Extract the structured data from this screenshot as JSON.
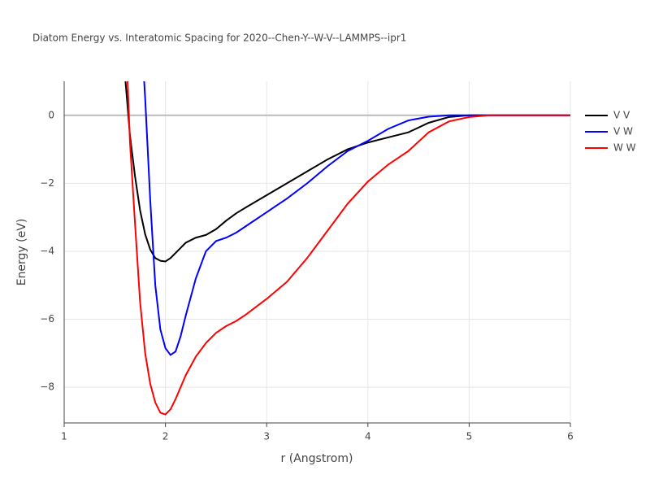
{
  "chart_data": {
    "type": "line",
    "title": "Diatom Energy vs. Interatomic Spacing for 2020--Chen-Y--W-V--LAMMPS--ipr1",
    "x_label": "r (Angstrom)",
    "y_label": "Energy (eV)",
    "x": [
      1.6,
      1.65,
      1.7,
      1.75,
      1.8,
      1.85,
      1.9,
      1.95,
      2.0,
      2.05,
      2.1,
      2.15,
      2.2,
      2.3,
      2.4,
      2.5,
      2.6,
      2.7,
      2.8,
      3.0,
      3.2,
      3.4,
      3.6,
      3.8,
      4.0,
      4.2,
      4.4,
      4.6,
      4.8,
      5.0,
      5.2,
      5.5,
      6.0
    ],
    "series": [
      {
        "name": "V V",
        "color": "#000000",
        "values": [
          1.2,
          -0.6,
          -1.8,
          -2.8,
          -3.5,
          -3.95,
          -4.2,
          -4.28,
          -4.3,
          -4.2,
          -4.05,
          -3.9,
          -3.75,
          -3.6,
          -3.52,
          -3.35,
          -3.1,
          -2.88,
          -2.7,
          -2.35,
          -2.0,
          -1.65,
          -1.3,
          -1.0,
          -0.8,
          -0.65,
          -0.5,
          -0.22,
          -0.05,
          0,
          0,
          0,
          0
        ]
      },
      {
        "name": "V W",
        "color": "#0000ff",
        "values": [
          null,
          null,
          null,
          3.0,
          0.5,
          -2.5,
          -5.0,
          -6.3,
          -6.85,
          -7.05,
          -6.95,
          -6.5,
          -5.9,
          -4.8,
          -4.0,
          -3.7,
          -3.6,
          -3.45,
          -3.25,
          -2.85,
          -2.45,
          -2.0,
          -1.5,
          -1.05,
          -0.75,
          -0.4,
          -0.15,
          -0.04,
          0,
          0,
          0,
          0,
          0
        ]
      },
      {
        "name": "W W",
        "color": "#ff0000",
        "values": [
          3.0,
          -0.8,
          -3.2,
          -5.5,
          -7.0,
          -7.9,
          -8.45,
          -8.75,
          -8.8,
          -8.65,
          -8.35,
          -8.0,
          -7.65,
          -7.1,
          -6.7,
          -6.4,
          -6.2,
          -6.05,
          -5.85,
          -5.4,
          -4.9,
          -4.2,
          -3.4,
          -2.6,
          -1.95,
          -1.45,
          -1.05,
          -0.5,
          -0.18,
          -0.05,
          0,
          0,
          0
        ]
      }
    ],
    "xlim": [
      1,
      6
    ],
    "xticks": [
      1,
      2,
      3,
      4,
      5,
      6
    ],
    "ylim": [
      -9.05,
      1
    ],
    "yticks": [
      {
        "value": -8,
        "label": "−8"
      },
      {
        "value": -6,
        "label": "−6"
      },
      {
        "value": -4,
        "label": "−4"
      },
      {
        "value": -2,
        "label": "−2"
      },
      0
    ],
    "grid": true,
    "legend": "right"
  }
}
